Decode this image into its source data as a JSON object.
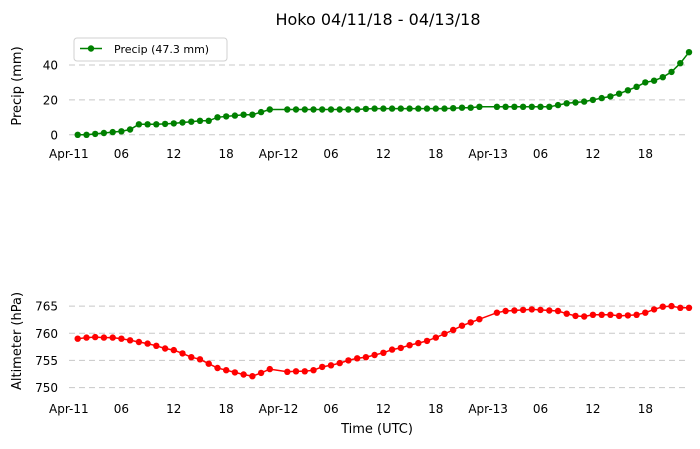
{
  "chart_data": {
    "title": "Hoko 04/11/18 - 04/13/18",
    "xlabel": "Time (UTC)",
    "x_range": [
      "2018-04-11T00:00",
      "2018-04-13T23:00"
    ],
    "x_ticks": [
      {
        "t": "2018-04-11T00:00",
        "label": "Apr-11"
      },
      {
        "t": "2018-04-11T06:00",
        "label": "06"
      },
      {
        "t": "2018-04-11T12:00",
        "label": "12"
      },
      {
        "t": "2018-04-11T18:00",
        "label": "18"
      },
      {
        "t": "2018-04-12T00:00",
        "label": "Apr-12"
      },
      {
        "t": "2018-04-12T06:00",
        "label": "06"
      },
      {
        "t": "2018-04-12T12:00",
        "label": "12"
      },
      {
        "t": "2018-04-12T18:00",
        "label": "18"
      },
      {
        "t": "2018-04-13T00:00",
        "label": "Apr-13"
      },
      {
        "t": "2018-04-13T06:00",
        "label": "06"
      },
      {
        "t": "2018-04-13T12:00",
        "label": "12"
      },
      {
        "t": "2018-04-13T18:00",
        "label": "18"
      }
    ],
    "panels": [
      {
        "type": "line",
        "ylabel": "Precip (mm)",
        "ylim": [
          -3,
          52
        ],
        "yticks": [
          0,
          20,
          40
        ],
        "grid": "horizontal dashed",
        "legend": "top-left",
        "color": "#008000",
        "series": [
          {
            "name": "Precip (47.3 mm)",
            "points": [
              [
                "2018-04-11T01:00",
                0.0
              ],
              [
                "2018-04-11T02:00",
                0.0
              ],
              [
                "2018-04-11T03:00",
                0.5
              ],
              [
                "2018-04-11T04:00",
                1.0
              ],
              [
                "2018-04-11T05:00",
                1.5
              ],
              [
                "2018-04-11T06:00",
                2.0
              ],
              [
                "2018-04-11T07:00",
                3.0
              ],
              [
                "2018-04-11T08:00",
                6.0
              ],
              [
                "2018-04-11T09:00",
                6.0
              ],
              [
                "2018-04-11T10:00",
                6.0
              ],
              [
                "2018-04-11T11:00",
                6.2
              ],
              [
                "2018-04-11T12:00",
                6.5
              ],
              [
                "2018-04-11T13:00",
                7.0
              ],
              [
                "2018-04-11T14:00",
                7.5
              ],
              [
                "2018-04-11T15:00",
                8.0
              ],
              [
                "2018-04-11T16:00",
                8.0
              ],
              [
                "2018-04-11T17:00",
                10.0
              ],
              [
                "2018-04-11T18:00",
                10.5
              ],
              [
                "2018-04-11T19:00",
                11.0
              ],
              [
                "2018-04-11T20:00",
                11.5
              ],
              [
                "2018-04-11T21:00",
                11.5
              ],
              [
                "2018-04-11T22:00",
                13.0
              ],
              [
                "2018-04-11T23:00",
                14.5
              ],
              [
                "2018-04-12T01:00",
                14.5
              ],
              [
                "2018-04-12T02:00",
                14.5
              ],
              [
                "2018-04-12T03:00",
                14.5
              ],
              [
                "2018-04-12T04:00",
                14.5
              ],
              [
                "2018-04-12T05:00",
                14.5
              ],
              [
                "2018-04-12T06:00",
                14.5
              ],
              [
                "2018-04-12T07:00",
                14.5
              ],
              [
                "2018-04-12T08:00",
                14.5
              ],
              [
                "2018-04-12T09:00",
                14.5
              ],
              [
                "2018-04-12T10:00",
                14.8
              ],
              [
                "2018-04-12T11:00",
                15.0
              ],
              [
                "2018-04-12T12:00",
                15.0
              ],
              [
                "2018-04-12T13:00",
                15.0
              ],
              [
                "2018-04-12T14:00",
                15.0
              ],
              [
                "2018-04-12T15:00",
                15.0
              ],
              [
                "2018-04-12T16:00",
                15.0
              ],
              [
                "2018-04-12T17:00",
                15.0
              ],
              [
                "2018-04-12T18:00",
                15.0
              ],
              [
                "2018-04-12T19:00",
                15.0
              ],
              [
                "2018-04-12T20:00",
                15.2
              ],
              [
                "2018-04-12T21:00",
                15.5
              ],
              [
                "2018-04-12T22:00",
                15.5
              ],
              [
                "2018-04-12T23:00",
                16.0
              ],
              [
                "2018-04-13T01:00",
                16.0
              ],
              [
                "2018-04-13T02:00",
                16.0
              ],
              [
                "2018-04-13T03:00",
                16.0
              ],
              [
                "2018-04-13T04:00",
                16.0
              ],
              [
                "2018-04-13T05:00",
                16.0
              ],
              [
                "2018-04-13T06:00",
                16.0
              ],
              [
                "2018-04-13T07:00",
                16.0
              ],
              [
                "2018-04-13T08:00",
                17.0
              ],
              [
                "2018-04-13T09:00",
                18.0
              ],
              [
                "2018-04-13T10:00",
                18.5
              ],
              [
                "2018-04-13T11:00",
                19.0
              ],
              [
                "2018-04-13T12:00",
                20.0
              ],
              [
                "2018-04-13T13:00",
                21.0
              ],
              [
                "2018-04-13T14:00",
                22.0
              ],
              [
                "2018-04-13T15:00",
                23.5
              ],
              [
                "2018-04-13T16:00",
                25.5
              ],
              [
                "2018-04-13T17:00",
                27.5
              ],
              [
                "2018-04-13T18:00",
                30.0
              ],
              [
                "2018-04-13T19:00",
                31.0
              ],
              [
                "2018-04-13T20:00",
                33.0
              ],
              [
                "2018-04-13T21:00",
                36.0
              ],
              [
                "2018-04-13T22:00",
                41.0
              ],
              [
                "2018-04-13T23:00",
                47.3
              ]
            ]
          }
        ]
      },
      {
        "type": "line",
        "ylabel": "Altimeter (hPa)",
        "ylim": [
          749,
          766.5
        ],
        "yticks": [
          750,
          755,
          760,
          765
        ],
        "grid": "horizontal dashed",
        "color": "#ff0000",
        "series": [
          {
            "points": [
              [
                "2018-04-11T01:00",
                759.0
              ],
              [
                "2018-04-11T02:00",
                759.2
              ],
              [
                "2018-04-11T03:00",
                759.3
              ],
              [
                "2018-04-11T04:00",
                759.2
              ],
              [
                "2018-04-11T05:00",
                759.2
              ],
              [
                "2018-04-11T06:00",
                759.0
              ],
              [
                "2018-04-11T07:00",
                758.7
              ],
              [
                "2018-04-11T08:00",
                758.4
              ],
              [
                "2018-04-11T09:00",
                758.1
              ],
              [
                "2018-04-11T10:00",
                757.7
              ],
              [
                "2018-04-11T11:00",
                757.2
              ],
              [
                "2018-04-11T12:00",
                756.9
              ],
              [
                "2018-04-11T13:00",
                756.3
              ],
              [
                "2018-04-11T14:00",
                755.6
              ],
              [
                "2018-04-11T15:00",
                755.2
              ],
              [
                "2018-04-11T16:00",
                754.4
              ],
              [
                "2018-04-11T17:00",
                753.6
              ],
              [
                "2018-04-11T18:00",
                753.2
              ],
              [
                "2018-04-11T19:00",
                752.8
              ],
              [
                "2018-04-11T20:00",
                752.4
              ],
              [
                "2018-04-11T21:00",
                752.1
              ],
              [
                "2018-04-11T22:00",
                752.7
              ],
              [
                "2018-04-11T23:00",
                753.4
              ],
              [
                "2018-04-12T01:00",
                752.9
              ],
              [
                "2018-04-12T02:00",
                753.0
              ],
              [
                "2018-04-12T03:00",
                753.0
              ],
              [
                "2018-04-12T04:00",
                753.2
              ],
              [
                "2018-04-12T05:00",
                753.8
              ],
              [
                "2018-04-12T06:00",
                754.1
              ],
              [
                "2018-04-12T07:00",
                754.5
              ],
              [
                "2018-04-12T08:00",
                755.0
              ],
              [
                "2018-04-12T09:00",
                755.4
              ],
              [
                "2018-04-12T10:00",
                755.6
              ],
              [
                "2018-04-12T11:00",
                756.0
              ],
              [
                "2018-04-12T12:00",
                756.4
              ],
              [
                "2018-04-12T13:00",
                757.0
              ],
              [
                "2018-04-12T14:00",
                757.3
              ],
              [
                "2018-04-12T15:00",
                757.8
              ],
              [
                "2018-04-12T16:00",
                758.2
              ],
              [
                "2018-04-12T17:00",
                758.6
              ],
              [
                "2018-04-12T18:00",
                759.2
              ],
              [
                "2018-04-12T19:00",
                759.9
              ],
              [
                "2018-04-12T20:00",
                760.6
              ],
              [
                "2018-04-12T21:00",
                761.4
              ],
              [
                "2018-04-12T22:00",
                762.0
              ],
              [
                "2018-04-12T23:00",
                762.6
              ],
              [
                "2018-04-13T01:00",
                763.8
              ],
              [
                "2018-04-13T02:00",
                764.1
              ],
              [
                "2018-04-13T03:00",
                764.2
              ],
              [
                "2018-04-13T04:00",
                764.3
              ],
              [
                "2018-04-13T05:00",
                764.4
              ],
              [
                "2018-04-13T06:00",
                764.3
              ],
              [
                "2018-04-13T07:00",
                764.2
              ],
              [
                "2018-04-13T08:00",
                764.1
              ],
              [
                "2018-04-13T09:00",
                763.6
              ],
              [
                "2018-04-13T10:00",
                763.2
              ],
              [
                "2018-04-13T11:00",
                763.1
              ],
              [
                "2018-04-13T12:00",
                763.4
              ],
              [
                "2018-04-13T13:00",
                763.4
              ],
              [
                "2018-04-13T14:00",
                763.4
              ],
              [
                "2018-04-13T15:00",
                763.2
              ],
              [
                "2018-04-13T16:00",
                763.3
              ],
              [
                "2018-04-13T17:00",
                763.4
              ],
              [
                "2018-04-13T18:00",
                763.8
              ],
              [
                "2018-04-13T19:00",
                764.4
              ],
              [
                "2018-04-13T20:00",
                764.9
              ],
              [
                "2018-04-13T21:00",
                765.0
              ],
              [
                "2018-04-13T22:00",
                764.7
              ],
              [
                "2018-04-13T23:00",
                764.7
              ]
            ]
          }
        ]
      }
    ]
  }
}
